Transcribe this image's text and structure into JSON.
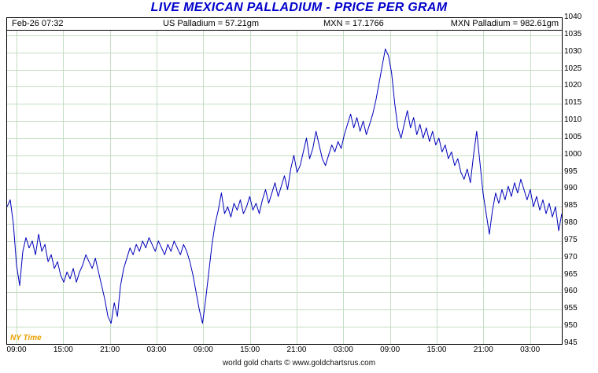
{
  "title": "LIVE MEXICAN PALLADIUM - PRICE PER GRAM",
  "header": {
    "timestamp": "Feb-26  07:32",
    "us_palladium": "US Palladium = 57.21gm",
    "mxn_rate": "MXN = 17.1766",
    "mxn_palladium": "MXN Palladium = 982.61gm"
  },
  "colors": {
    "title": "#0000cc",
    "line": "#0000bb",
    "grid": "#c4dec4",
    "ny_time": "#e8a000"
  },
  "footer": "world gold charts © www.goldchartsrus.com",
  "chart_data": {
    "type": "line",
    "title": "LIVE MEXICAN PALLADIUM - PRICE PER GRAM",
    "xlabel": "",
    "ylabel": "",
    "x_note": "NY Time",
    "ylim": [
      945,
      1040
    ],
    "y_tick_step": 5,
    "grid": true,
    "line_color": "#0000bb",
    "grid_color": "#c4dec4",
    "x_tick_labels": [
      "09:00",
      "15:00",
      "21:00",
      "03:00",
      "09:00",
      "15:00",
      "21:00",
      "03:00",
      "09:00",
      "15:00",
      "21:00",
      "03:00"
    ],
    "values": [
      985,
      987,
      980,
      968,
      962,
      972,
      976,
      973,
      975,
      971,
      977,
      972,
      974,
      969,
      971,
      967,
      969,
      965,
      963,
      966,
      964,
      967,
      963,
      966,
      968,
      971,
      969,
      967,
      970,
      966,
      962,
      958,
      953,
      951,
      957,
      953,
      962,
      967,
      970,
      973,
      971,
      974,
      972,
      975,
      973,
      976,
      974,
      972,
      975,
      973,
      971,
      974,
      972,
      975,
      973,
      971,
      974,
      972,
      969,
      965,
      960,
      955,
      951,
      958,
      966,
      974,
      980,
      984,
      989,
      983,
      985,
      982,
      986,
      984,
      987,
      983,
      985,
      988,
      984,
      986,
      983,
      987,
      990,
      986,
      989,
      992,
      988,
      991,
      994,
      990,
      996,
      1000,
      995,
      997,
      1001,
      1005,
      999,
      1002,
      1007,
      1003,
      999,
      997,
      1000,
      1003,
      1001,
      1004,
      1002,
      1006,
      1009,
      1012,
      1008,
      1011,
      1007,
      1010,
      1006,
      1009,
      1012,
      1016,
      1021,
      1026,
      1031,
      1029,
      1024,
      1015,
      1008,
      1005,
      1009,
      1013,
      1008,
      1011,
      1006,
      1009,
      1005,
      1008,
      1004,
      1007,
      1003,
      1005,
      1001,
      1003,
      999,
      1001,
      997,
      999,
      995,
      993,
      996,
      992,
      1000,
      1007,
      998,
      989,
      983,
      977,
      984,
      989,
      986,
      990,
      987,
      991,
      988,
      992,
      989,
      993,
      990,
      987,
      990,
      985,
      988,
      984,
      987,
      983,
      986,
      982,
      985,
      978,
      983
    ]
  }
}
